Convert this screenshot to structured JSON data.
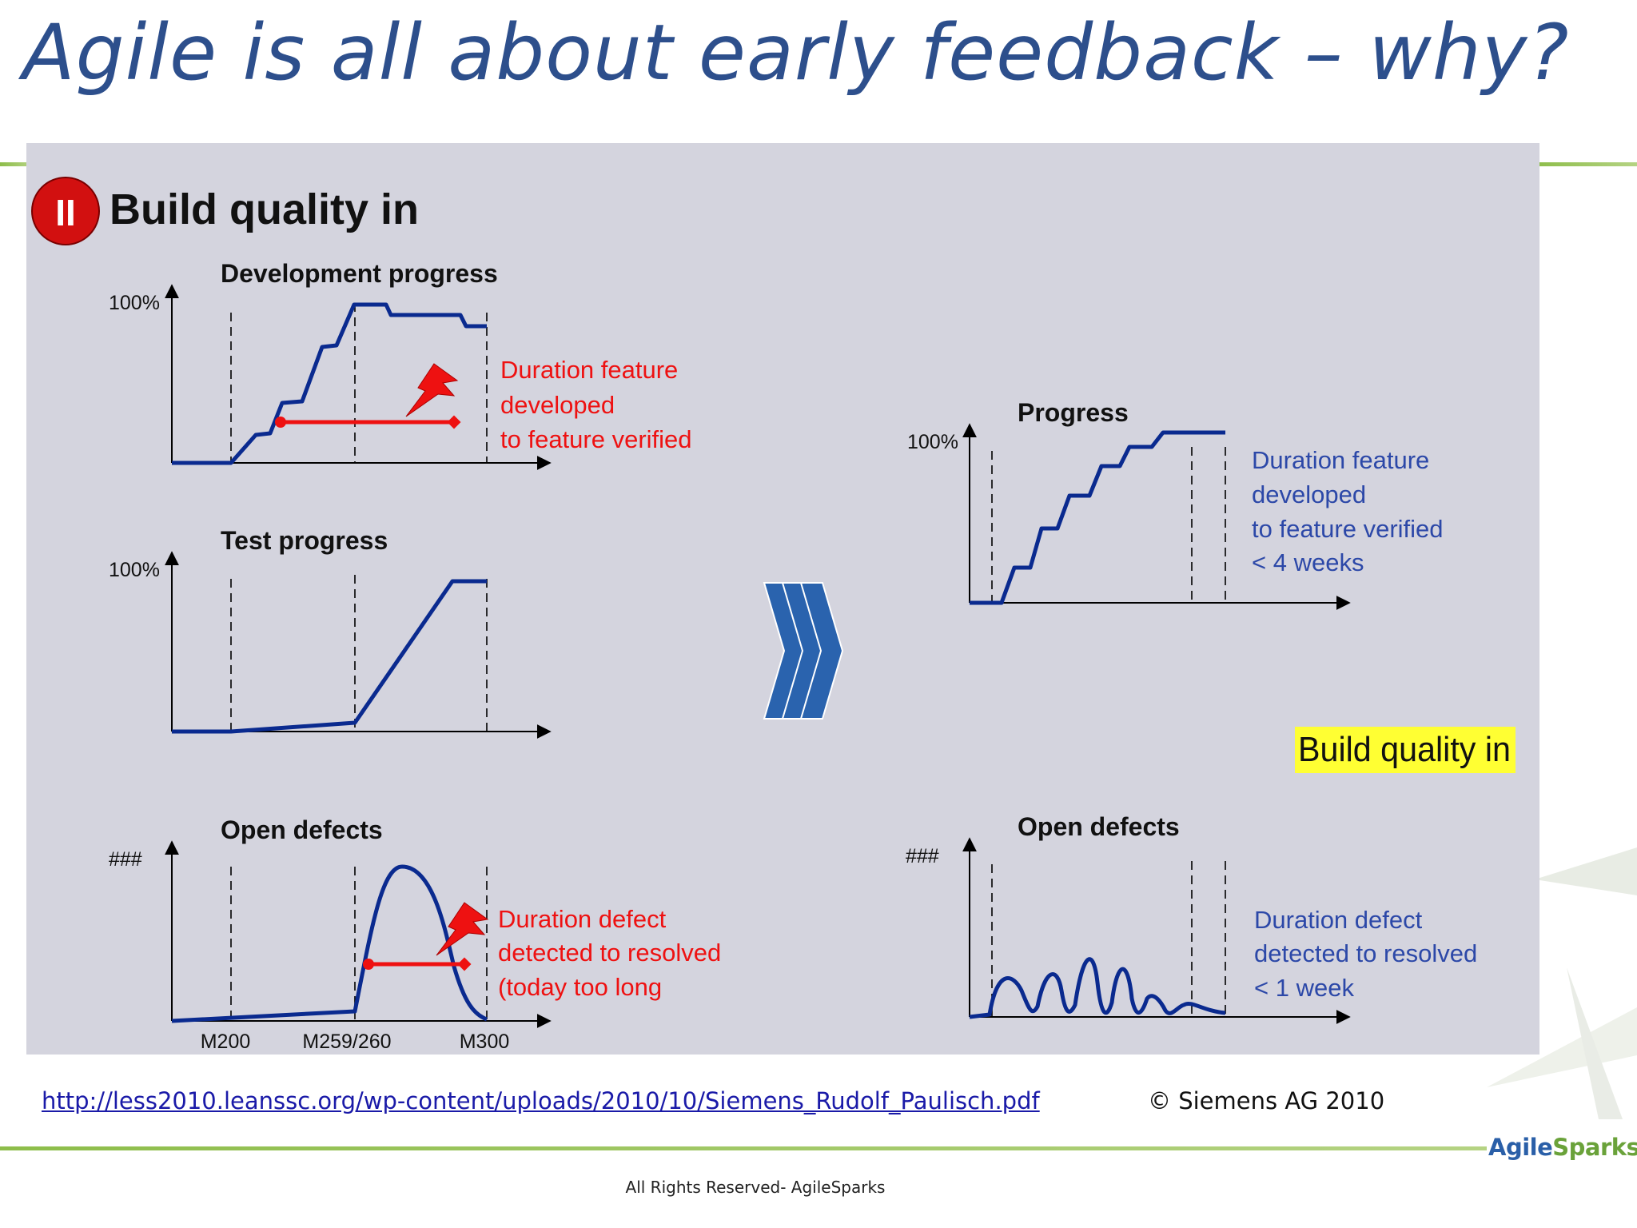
{
  "slide": {
    "title": "Agile is all about early feedback – why?",
    "link": "http://less2010.leanssc.org/wp-content/uploads/2010/10/Siemens_Rudolf_Paulisch.pdf",
    "copyright": "© Siemens AG 2010",
    "footer": "All Rights Reserved- AgileSparks",
    "logo": {
      "part1": "Agile",
      "part2": "Sparks"
    }
  },
  "panel": {
    "badge": "II",
    "heading": "Build quality in",
    "highlight": "Build quality in",
    "colors": {
      "line": "#0a2a8f",
      "red": "#ee1111",
      "annot_blue": "#2c48a8",
      "highlight": "#ffff33",
      "badge": "#d21010"
    }
  },
  "left": {
    "dev": {
      "title": "Development progress",
      "ylabel": "100%",
      "annotation": [
        "Duration feature",
        "developed",
        "to feature verified"
      ]
    },
    "test": {
      "title": "Test progress",
      "ylabel": "100%"
    },
    "defects": {
      "title": "Open defects",
      "ylabel": "###",
      "annotation": [
        "Duration defect",
        "detected to resolved",
        "(today too long"
      ],
      "milestones": [
        "M200",
        "M259/260",
        "M300"
      ]
    }
  },
  "right": {
    "progress": {
      "title": "Progress",
      "ylabel": "100%",
      "annotation": [
        "Duration feature",
        "developed",
        "to feature verified",
        "< 4 weeks"
      ]
    },
    "defects": {
      "title": "Open defects",
      "ylabel": "###",
      "annotation": [
        "Duration defect",
        "detected to resolved",
        "< 1 week"
      ]
    }
  }
}
